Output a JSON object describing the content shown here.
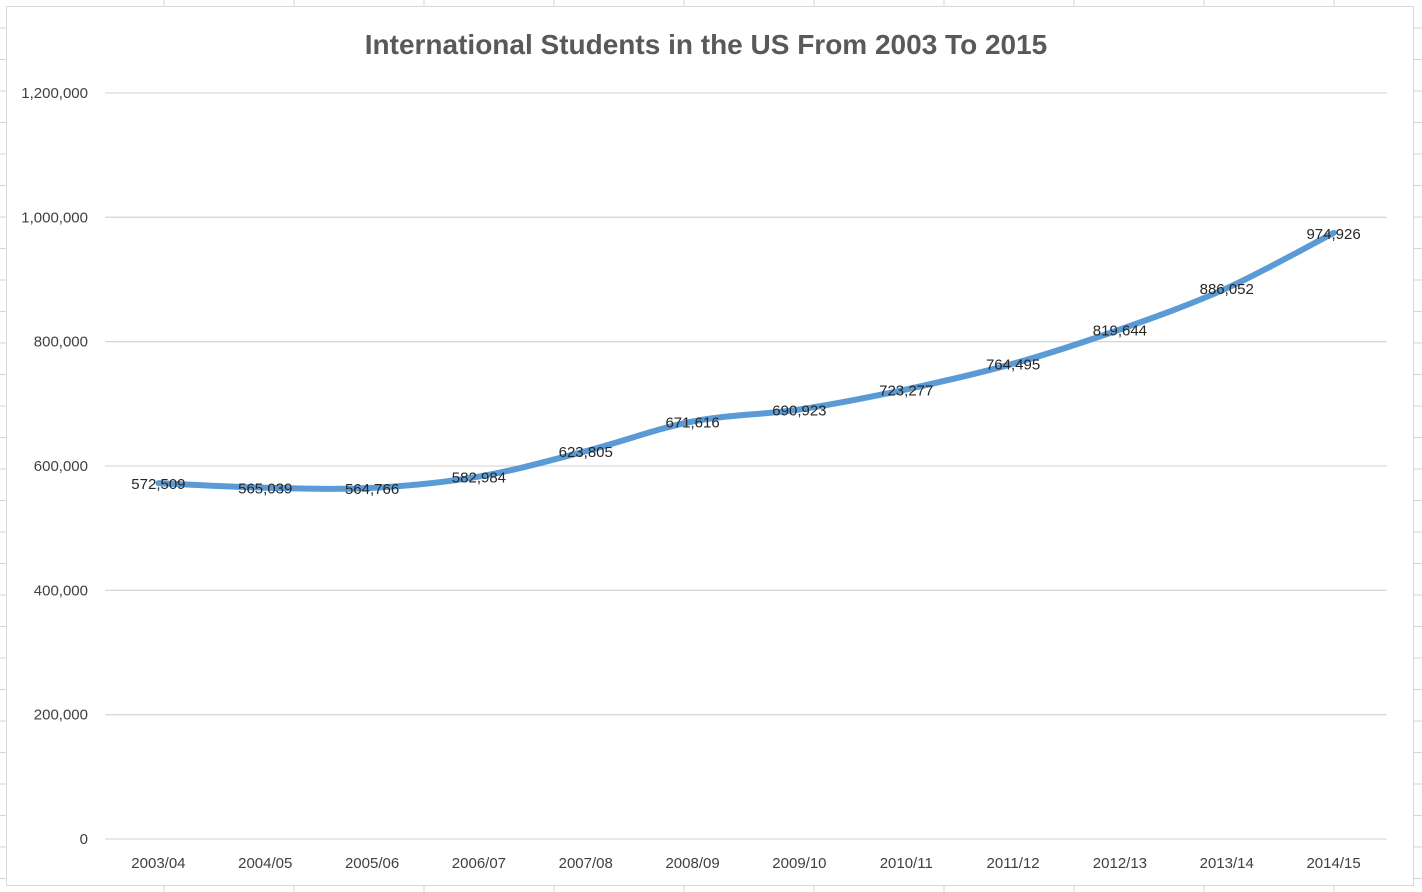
{
  "chart_data": {
    "type": "line",
    "title": "International Students in the US From 2003 To 2015",
    "xlabel": "",
    "ylabel": "",
    "categories": [
      "2003/04",
      "2004/05",
      "2005/06",
      "2006/07",
      "2007/08",
      "2008/09",
      "2009/10",
      "2010/11",
      "2011/12",
      "2012/13",
      "2013/14",
      "2014/15"
    ],
    "series": [
      {
        "name": "International Students",
        "values": [
          572509,
          565039,
          564766,
          582984,
          623805,
          671616,
          690923,
          723277,
          764495,
          819644,
          886052,
          974926
        ],
        "labels": [
          "572,509",
          "565,039",
          "564,766",
          "582,984",
          "623,805",
          "671,616",
          "690,923",
          "723,277",
          "764,495",
          "819,644",
          "886,052",
          "974,926"
        ]
      }
    ],
    "ylim": [
      0,
      1200000
    ],
    "yticks": [
      0,
      200000,
      400000,
      600000,
      800000,
      1000000,
      1200000
    ],
    "ytick_labels": [
      "0",
      "200,000",
      "400,000",
      "600,000",
      "800,000",
      "1,000,000",
      "1,200,000"
    ],
    "grid": true,
    "legend": "none",
    "colors": {
      "line": "#5b9bd5",
      "grid": "#d9d9d9",
      "title": "#595959",
      "axis_text": "#404040",
      "data_label": "#262626"
    }
  }
}
